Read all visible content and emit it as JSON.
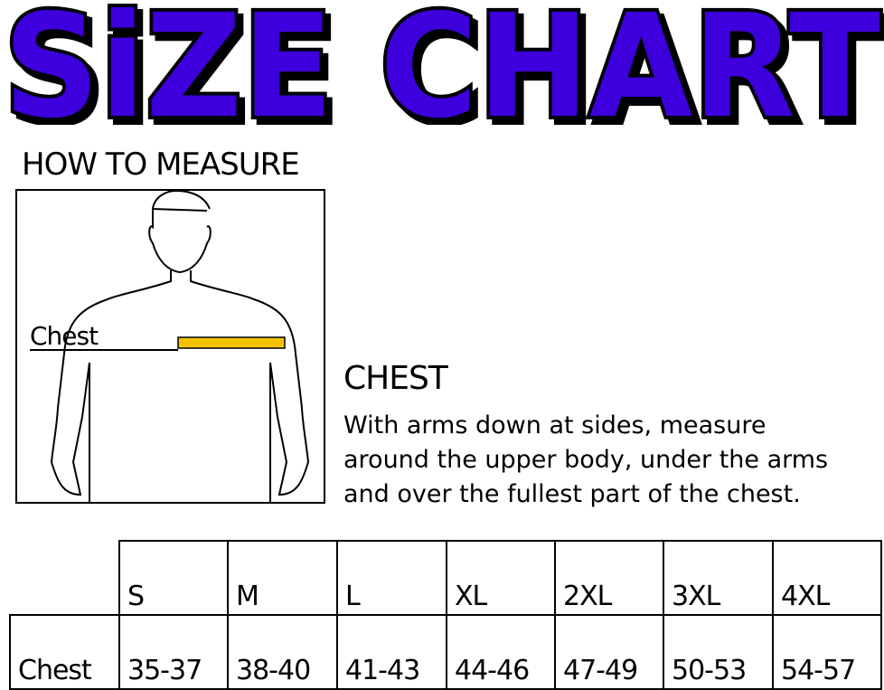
{
  "title": "SiZE CHART",
  "colors": {
    "title_fill": "#3d00dc",
    "tape": "#f2c200"
  },
  "how_to_measure": "HOW TO MEASURE",
  "figure": {
    "label": "Chest"
  },
  "chest_section": {
    "heading": "CHEST",
    "lines": [
      "With arms down at sides, measure",
      "around the upper body, under the arms",
      "and over the fullest part of the chest."
    ]
  },
  "size_table": {
    "sizes": [
      "S",
      "M",
      "L",
      "XL",
      "2XL",
      "3XL",
      "4XL"
    ],
    "rows": [
      {
        "label": "Chest",
        "values": [
          "35-37",
          "38-40",
          "41-43",
          "44-46",
          "47-49",
          "50-53",
          "54-57"
        ]
      }
    ]
  }
}
